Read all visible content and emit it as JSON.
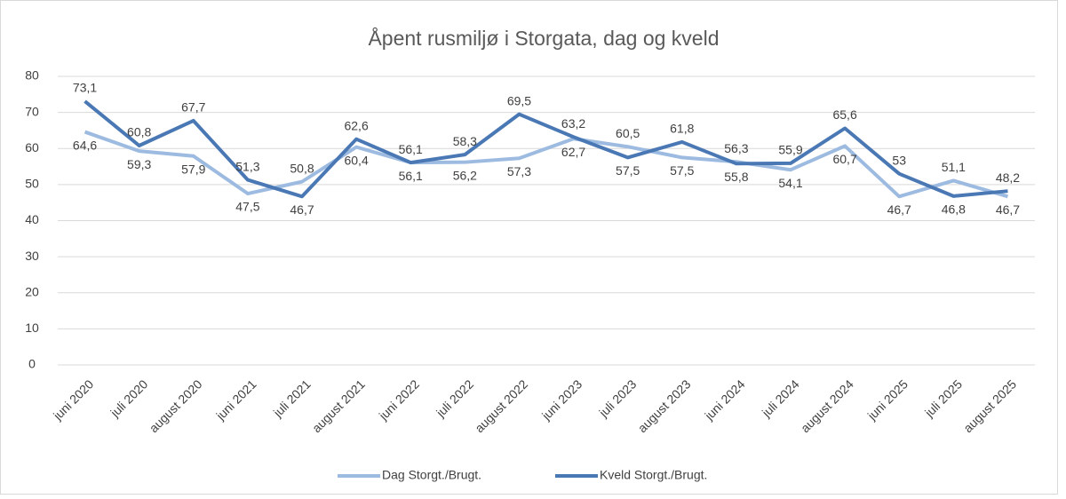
{
  "chart_data": {
    "type": "line",
    "title": "Åpent rusmiljø i Storgata, dag og kveld",
    "categories": [
      "juni 2020",
      "juli 2020",
      "august 2020",
      "juni 2021",
      "juli 2021",
      "august 2021",
      "juni 2022",
      "juli 2022",
      "august 2022",
      "juni 2023",
      "juli 2023",
      "august 2023",
      "juni 2024",
      "juli 2024",
      "august 2024",
      "juni 2025",
      "juli 2025",
      "august 2025"
    ],
    "series": [
      {
        "name": "Dag Storgt./Brugt.",
        "color": "#9dbbe0",
        "values": [
          64.6,
          59.3,
          57.9,
          47.5,
          50.8,
          60.4,
          56.1,
          56.2,
          57.3,
          62.7,
          60.5,
          57.5,
          56.3,
          54.1,
          60.7,
          46.7,
          51.1,
          46.7
        ],
        "value_labels": [
          "64,6",
          "59,3",
          "57,9",
          "47,5",
          "50,8",
          "60,4",
          "56,1",
          "56,2",
          "57,3",
          "62,7",
          "60,5",
          "57,5",
          "56,3",
          "54,1",
          "60,7",
          "46,7",
          "51,1",
          "46,7"
        ]
      },
      {
        "name": "Kveld Storgt./Brugt.",
        "color": "#4a78b4",
        "values": [
          73.1,
          60.8,
          67.7,
          51.3,
          46.7,
          62.6,
          56.1,
          58.3,
          69.5,
          63.2,
          57.5,
          61.8,
          55.8,
          55.9,
          65.6,
          53,
          46.8,
          48.2
        ],
        "value_labels": [
          "73,1",
          "60,8",
          "67,7",
          "51,3",
          "46,7",
          "62,6",
          "56,1",
          "58,3",
          "69,5",
          "63,2",
          "57,5",
          "61,8",
          "55,8",
          "55,9",
          "65,6",
          "53",
          "46,8",
          "48,2"
        ]
      }
    ],
    "ylim": [
      0,
      80
    ],
    "yticks": [
      0,
      10,
      20,
      30,
      40,
      50,
      60,
      70,
      80
    ],
    "grid": true,
    "legend": "bottom"
  }
}
